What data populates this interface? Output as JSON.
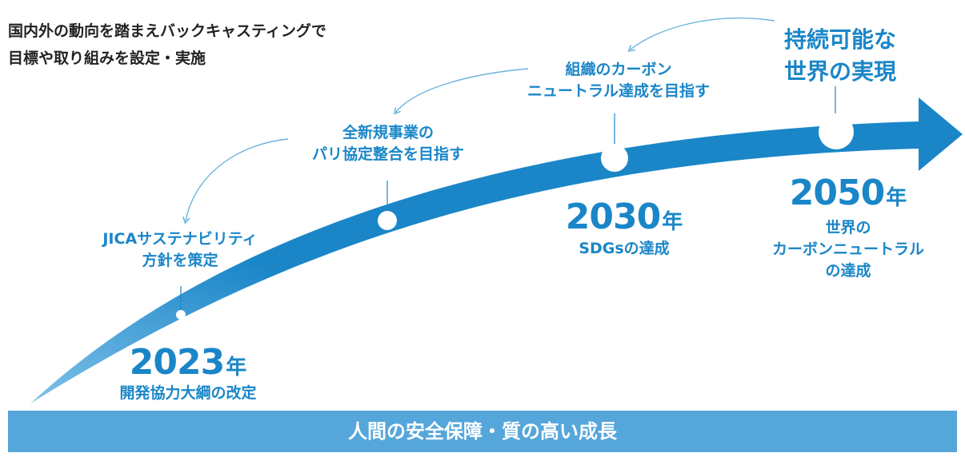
{
  "heading": {
    "line1": "国内外の動向を踏まえバックキャスティングで",
    "line2": "目標や取り組みを設定・実施"
  },
  "milestones": [
    {
      "year": "2023",
      "unit": "年",
      "desc": [
        "開発協力大綱の改定"
      ],
      "goal": [
        "JICAサステナビリティ",
        "方針を策定"
      ]
    },
    {
      "goal": [
        "全新規事業の",
        "パリ協定整合を目指す"
      ]
    },
    {
      "year": "2030",
      "unit": "年",
      "desc": [
        "SDGsの達成"
      ],
      "goal": [
        "組織のカーボン",
        "ニュートラル達成を目指す"
      ]
    },
    {
      "year": "2050",
      "unit": "年",
      "desc": [
        "世界の",
        "カーボンニュートラル",
        "の達成"
      ],
      "goal": [
        "持続可能な",
        "世界の実現"
      ]
    }
  ],
  "banner": "人間の安全保障・質の高い成長",
  "colors": {
    "arrow": "#1a86c8",
    "arrow_light": "#7fc1e8",
    "text_accent": "#1a86c8",
    "heading": "#222222",
    "banner": "#55a6da",
    "curve_line": "#6bb3e0"
  }
}
